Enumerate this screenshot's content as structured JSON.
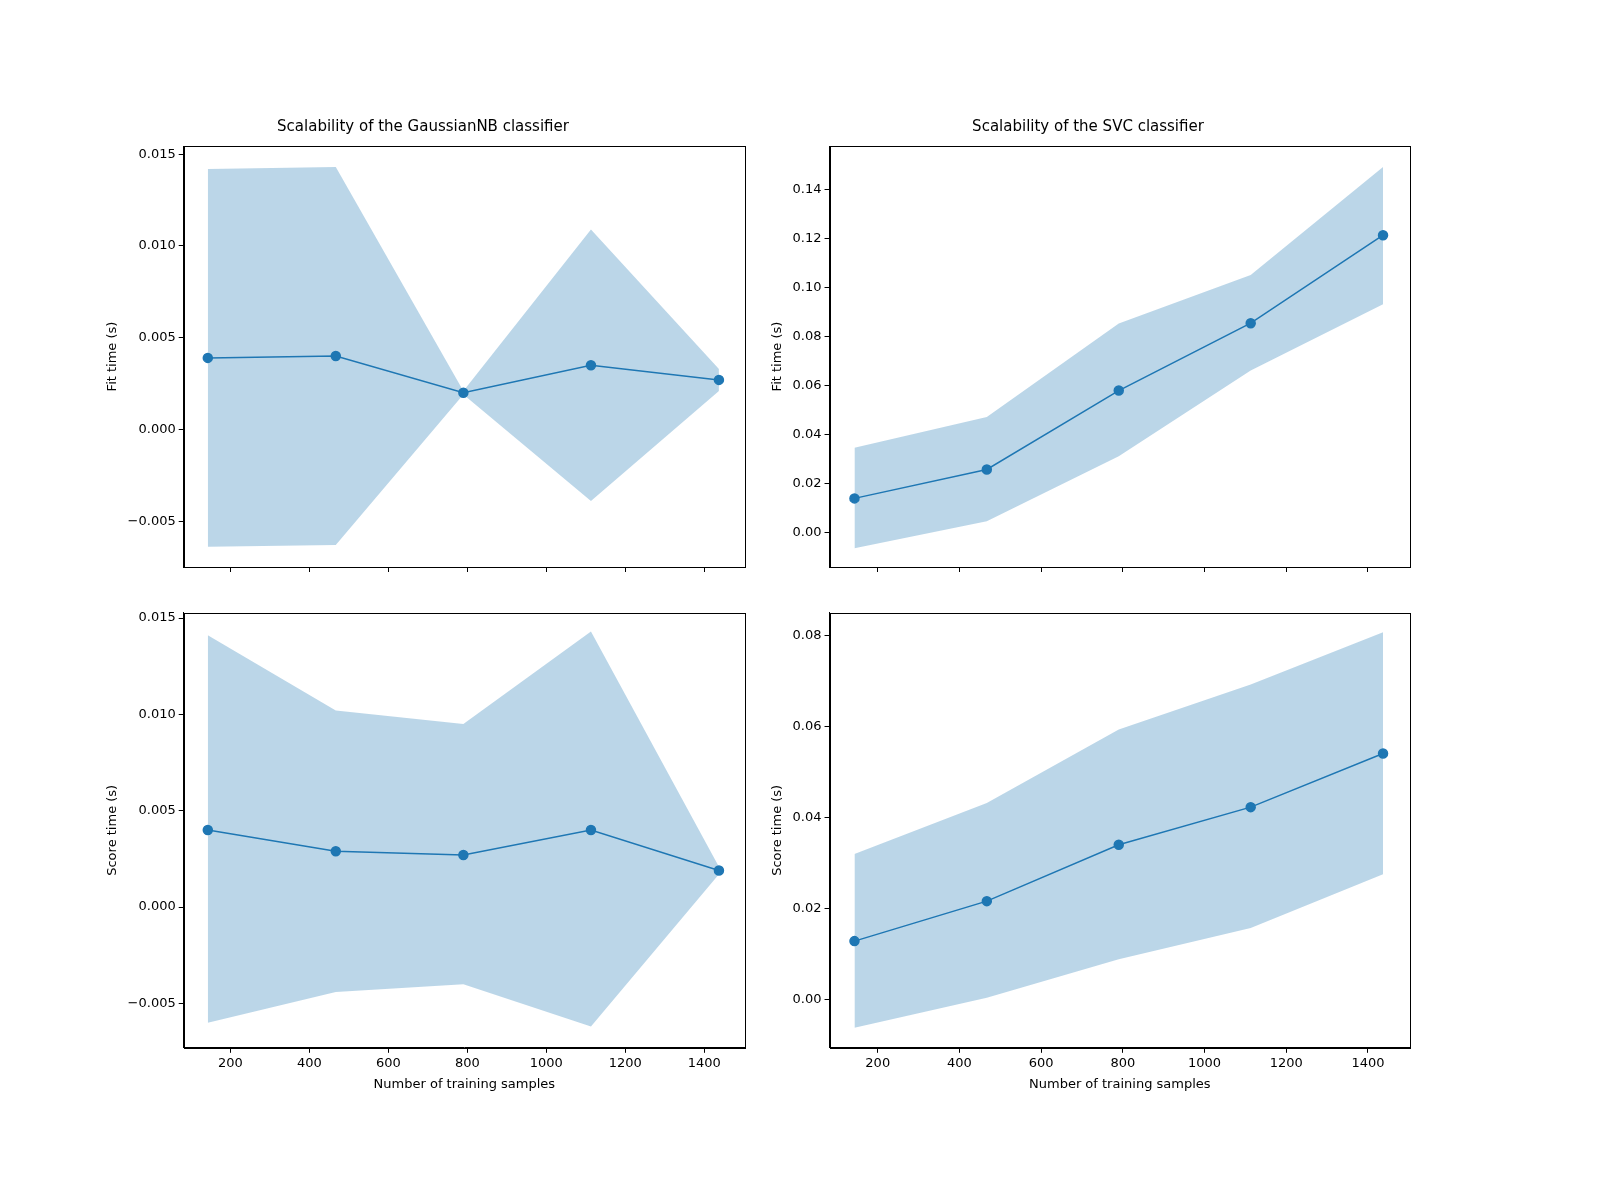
{
  "chart_data": [
    {
      "type": "line",
      "title": "Scalability of the GaussianNB classifier",
      "y_label": "Fit time (s)",
      "x": [
        143,
        467,
        790,
        1113,
        1437
      ],
      "values": [
        0.0039,
        0.004,
        0.002,
        0.0035,
        0.0027
      ],
      "lower": [
        -0.0064,
        -0.0063,
        0.0019,
        -0.0039,
        0.0021
      ],
      "upper": [
        0.0142,
        0.0143,
        0.0021,
        0.0109,
        0.0033
      ],
      "color": "#1f77b4",
      "marker": "circle",
      "grid": false,
      "tick_labels": "y",
      "xlim": [
        82,
        1503
      ],
      "xticks": [
        200,
        400,
        600,
        800,
        1000,
        1200,
        1400
      ],
      "ylim": [
        -0.0075,
        0.01545
      ],
      "yticks": [
        {
          "value": -0.005,
          "label": "−0.005"
        },
        {
          "value": 0,
          "label": "0.000"
        },
        {
          "value": 0.005,
          "label": "0.005"
        },
        {
          "value": 0.01,
          "label": "0.010"
        },
        {
          "value": 0.015,
          "label": "0.015"
        }
      ]
    },
    {
      "type": "line",
      "title": "Scalability of the SVC classifier",
      "y_label": "Fit time (s)",
      "x": [
        143,
        467,
        790,
        1113,
        1437
      ],
      "values": [
        0.0138,
        0.0256,
        0.0578,
        0.0853,
        0.1212
      ],
      "lower": [
        -0.0065,
        0.0045,
        0.031,
        0.066,
        0.093
      ],
      "upper": [
        0.0345,
        0.047,
        0.0852,
        0.105,
        0.149
      ],
      "color": "#1f77b4",
      "marker": "circle",
      "grid": false,
      "tick_labels": "y",
      "xlim": [
        82,
        1503
      ],
      "xticks": [
        200,
        400,
        600,
        800,
        1000,
        1200,
        1400
      ],
      "ylim": [
        -0.0142,
        0.1576
      ],
      "yticks": [
        {
          "value": 0,
          "label": "0.00"
        },
        {
          "value": 0.02,
          "label": "0.02"
        },
        {
          "value": 0.04,
          "label": "0.04"
        },
        {
          "value": 0.06,
          "label": "0.06"
        },
        {
          "value": 0.08,
          "label": "0.08"
        },
        {
          "value": 0.1,
          "label": "0.10"
        },
        {
          "value": 0.12,
          "label": "0.12"
        },
        {
          "value": 0.14,
          "label": "0.14"
        }
      ]
    },
    {
      "type": "line",
      "x_label": "Number of training samples",
      "y_label": "Score time (s)",
      "x": [
        143,
        467,
        790,
        1113,
        1437
      ],
      "values": [
        0.004,
        0.0029,
        0.0027,
        0.004,
        0.0019
      ],
      "lower": [
        -0.006,
        -0.0044,
        -0.004,
        -0.0062,
        0.0017
      ],
      "upper": [
        0.0141,
        0.0102,
        0.0095,
        0.0143,
        0.0021
      ],
      "color": "#1f77b4",
      "marker": "circle",
      "grid": false,
      "xlim": [
        82,
        1503
      ],
      "xticks": [
        200,
        400,
        600,
        800,
        1000,
        1200,
        1400
      ],
      "ylim": [
        -0.0073,
        0.01527
      ],
      "yticks": [
        {
          "value": -0.005,
          "label": "−0.005"
        },
        {
          "value": 0,
          "label": "0.000"
        },
        {
          "value": 0.005,
          "label": "0.005"
        },
        {
          "value": 0.01,
          "label": "0.010"
        },
        {
          "value": 0.015,
          "label": "0.015"
        }
      ]
    },
    {
      "type": "line",
      "x_label": "Number of training samples",
      "y_label": "Score time (s)",
      "x": [
        143,
        467,
        790,
        1113,
        1437
      ],
      "values": [
        0.0128,
        0.0216,
        0.034,
        0.0423,
        0.0541
      ],
      "lower": [
        -0.0063,
        0.0003,
        0.0088,
        0.0157,
        0.0275
      ],
      "upper": [
        0.032,
        0.0432,
        0.0594,
        0.0693,
        0.0808
      ],
      "color": "#1f77b4",
      "marker": "circle",
      "grid": false,
      "xlim": [
        82,
        1503
      ],
      "xticks": [
        200,
        400,
        600,
        800,
        1000,
        1200,
        1400
      ],
      "ylim": [
        -0.0107,
        0.0851
      ],
      "yticks": [
        {
          "value": 0,
          "label": "0.00"
        },
        {
          "value": 0.02,
          "label": "0.02"
        },
        {
          "value": 0.04,
          "label": "0.04"
        },
        {
          "value": 0.06,
          "label": "0.06"
        },
        {
          "value": 0.08,
          "label": "0.08"
        }
      ]
    }
  ]
}
